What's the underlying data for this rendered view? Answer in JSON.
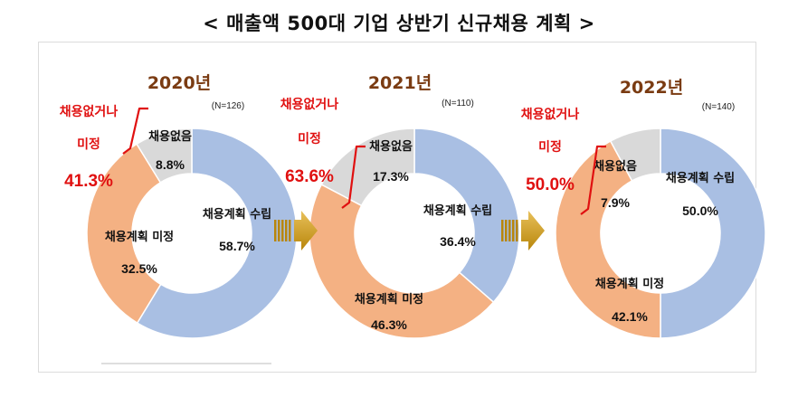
{
  "title": "< 매출액 500대 기업 상반기 신규채용 계획 >",
  "colors": {
    "plan": "#a9bfe3",
    "undecided": "#f4b183",
    "none": "#d9d9d9",
    "year": "#7a3b12",
    "note": "#e01010",
    "arrow_dark": "#b8860b",
    "arrow_light": "#e8c05a"
  },
  "chart_data": [
    {
      "type": "pie",
      "year": "2020년",
      "n": "(N=126)",
      "slices": [
        {
          "key": "plan",
          "name_line1": "채용계획 수립",
          "name_line2": "",
          "value": 58.7,
          "display": "58.7%"
        },
        {
          "key": "undecided",
          "name_line1": "채용계획 미정",
          "name_line2": "",
          "value": 32.5,
          "display": "32.5%"
        },
        {
          "key": "none",
          "name_line1": "채용없음",
          "name_line2": "",
          "value": 8.8,
          "display": "8.8%"
        }
      ],
      "note": {
        "line1": "채용없거나",
        "line2": "미정",
        "value": "41.3%"
      }
    },
    {
      "type": "pie",
      "year": "2021년",
      "n": "(N=110)",
      "slices": [
        {
          "key": "plan",
          "name_line1": "채용계획 수립",
          "value": 36.4,
          "display": "36.4%"
        },
        {
          "key": "undecided",
          "name_line1": "채용계획 미정",
          "value": 46.3,
          "display": "46.3%"
        },
        {
          "key": "none",
          "name_line1": "채용없음",
          "value": 17.3,
          "display": "17.3%"
        }
      ],
      "note": {
        "line1": "채용없거나",
        "line2": "미정",
        "value": "63.6%"
      }
    },
    {
      "type": "pie",
      "year": "2022년",
      "n": "(N=140)",
      "slices": [
        {
          "key": "plan",
          "name_line1": "채용계획 수립",
          "value": 50.0,
          "display": "50.0%"
        },
        {
          "key": "undecided",
          "name_line1": "채용계획 미정",
          "value": 42.1,
          "display": "42.1%"
        },
        {
          "key": "none",
          "name_line1": "채용없음",
          "value": 7.9,
          "display": "7.9%"
        }
      ],
      "note": {
        "line1": "채용없거나",
        "line2": "미정",
        "value": "50.0%"
      }
    }
  ]
}
